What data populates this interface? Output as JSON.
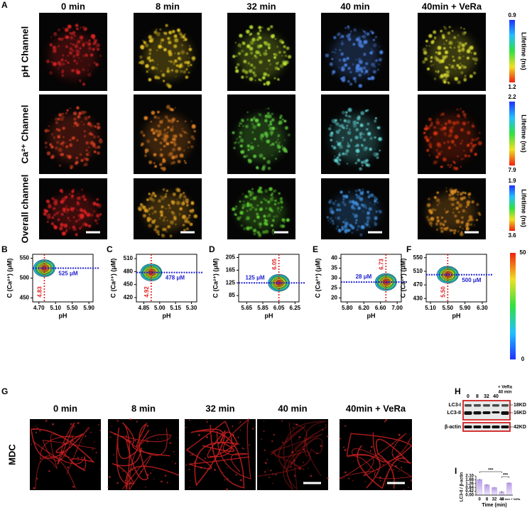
{
  "panel_labels": [
    "A",
    "B",
    "C",
    "D",
    "E",
    "F",
    "G",
    "H",
    "I"
  ],
  "panel_a": {
    "columns": [
      "0 min",
      "8 min",
      "32 min",
      "40 min",
      "40min  + VeRa"
    ],
    "rows": [
      "pH Channel",
      "Ca²⁺ Channel",
      "Overall channel"
    ],
    "colorbar_label": "Lifetime (ns)",
    "colorbars": [
      {
        "top": 0.9,
        "bottom": 1.2
      },
      {
        "top": 2.2,
        "bottom": 7.9
      },
      {
        "top": 1.9,
        "bottom": 3.6
      }
    ]
  },
  "chart_data": [
    {
      "type": "contour",
      "xlabel": "pH",
      "ylabel": "C (Ca²⁺) (μM)",
      "xlim": [
        4.55,
        6.0
      ],
      "ylim": [
        440,
        560
      ],
      "xticks": [
        {
          "value": 4.7,
          "label": "4.70"
        },
        {
          "value": 5.1,
          "label": "5.10"
        },
        {
          "value": 5.5,
          "label": "5.50"
        },
        {
          "value": 5.9,
          "label": "5.90"
        }
      ],
      "yticks": [
        450,
        500,
        550
      ],
      "peak": {
        "x": 4.83,
        "y": 525,
        "y_label": "525 μM"
      }
    },
    {
      "type": "contour",
      "xlabel": "pH",
      "ylabel": "C (Ca²⁺) (μM)",
      "xlim": [
        4.78,
        5.35
      ],
      "ylim": [
        410,
        520
      ],
      "xticks": [
        {
          "value": 4.85,
          "label": "4.85"
        },
        {
          "value": 5.0,
          "label": "5.00"
        },
        {
          "value": 5.15,
          "label": "5.15"
        },
        {
          "value": 5.3,
          "label": "5.30"
        }
      ],
      "yticks": [
        420,
        450,
        480,
        510
      ],
      "peak": {
        "x": 4.92,
        "y": 478,
        "y_label": "478 μM"
      }
    },
    {
      "type": "contour",
      "xlabel": "pH",
      "ylabel": "C (Ca²⁺) (μM)",
      "xlim": [
        5.55,
        6.3
      ],
      "ylim": [
        65,
        215
      ],
      "xticks": [
        {
          "value": 5.65,
          "label": "5.65"
        },
        {
          "value": 5.85,
          "label": "5.85"
        },
        {
          "value": 6.05,
          "label": "6.05"
        },
        {
          "value": 6.25,
          "label": "6.25"
        }
      ],
      "yticks": [
        85,
        125,
        165,
        205
      ],
      "peak": {
        "x": 6.05,
        "y": 125,
        "y_label": "125 μM"
      }
    },
    {
      "type": "contour",
      "xlabel": "pH",
      "ylabel": "C (Ca²⁺) (μM)",
      "xlim": [
        5.65,
        7.1
      ],
      "ylim": [
        18,
        42
      ],
      "xticks": [
        {
          "value": 5.8,
          "label": "5.80"
        },
        {
          "value": 6.2,
          "label": "6.20"
        },
        {
          "value": 6.6,
          "label": "6.60"
        },
        {
          "value": 7.0,
          "label": "7.00"
        }
      ],
      "yticks": [
        20,
        25,
        30,
        35,
        40
      ],
      "peak": {
        "x": 6.73,
        "y": 28,
        "y_label": "28 μM"
      }
    },
    {
      "type": "contour",
      "xlabel": "pH",
      "ylabel": "C (Ca²⁺) (μM)",
      "xlim": [
        5.0,
        6.4
      ],
      "ylim": [
        420,
        560
      ],
      "xticks": [
        {
          "value": 5.1,
          "label": "5.10"
        },
        {
          "value": 5.5,
          "label": "5.50"
        },
        {
          "value": 5.9,
          "label": "5.90"
        },
        {
          "value": 6.3,
          "label": "6.30"
        }
      ],
      "yticks": [
        430,
        470,
        510,
        550
      ],
      "peak": {
        "x": 5.5,
        "x_label": "5.50",
        "y": 500,
        "y_label": "500 μM"
      },
      "colorbar": [
        0,
        50
      ]
    },
    {
      "type": "bar",
      "xlabel": "Time (min)",
      "ylabel": "LC3-II / β-actin",
      "categories": [
        "0",
        "8",
        "32",
        "40",
        "40 min + VeRa"
      ],
      "values": [
        1.72,
        1.14,
        0.84,
        0.36,
        1.34
      ],
      "errors": [
        0.05,
        0.05,
        0.04,
        0.08,
        0.05
      ],
      "color": "#c9b3ea",
      "ylim": [
        0,
        2.1
      ],
      "yticks": [
        {
          "value": 0,
          "label": "0.00"
        },
        0.42,
        0.84,
        1.26,
        1.68,
        {
          "value": 2.1,
          "label": "2.10"
        }
      ],
      "significance": [
        "***",
        "***"
      ]
    }
  ],
  "panel_g": {
    "columns": [
      "0 min",
      "8 min",
      "32 min",
      "40 min",
      "40min + VeRa"
    ],
    "row_label": "MDC"
  },
  "panel_h": {
    "lanes": [
      "0",
      "8",
      "32",
      "40",
      "+ VeRa",
      "40 min"
    ],
    "bands": [
      "LC3-I",
      "LC3-II",
      "β-actin"
    ],
    "sizes": [
      "18KD",
      "16KD",
      "42KD"
    ]
  }
}
